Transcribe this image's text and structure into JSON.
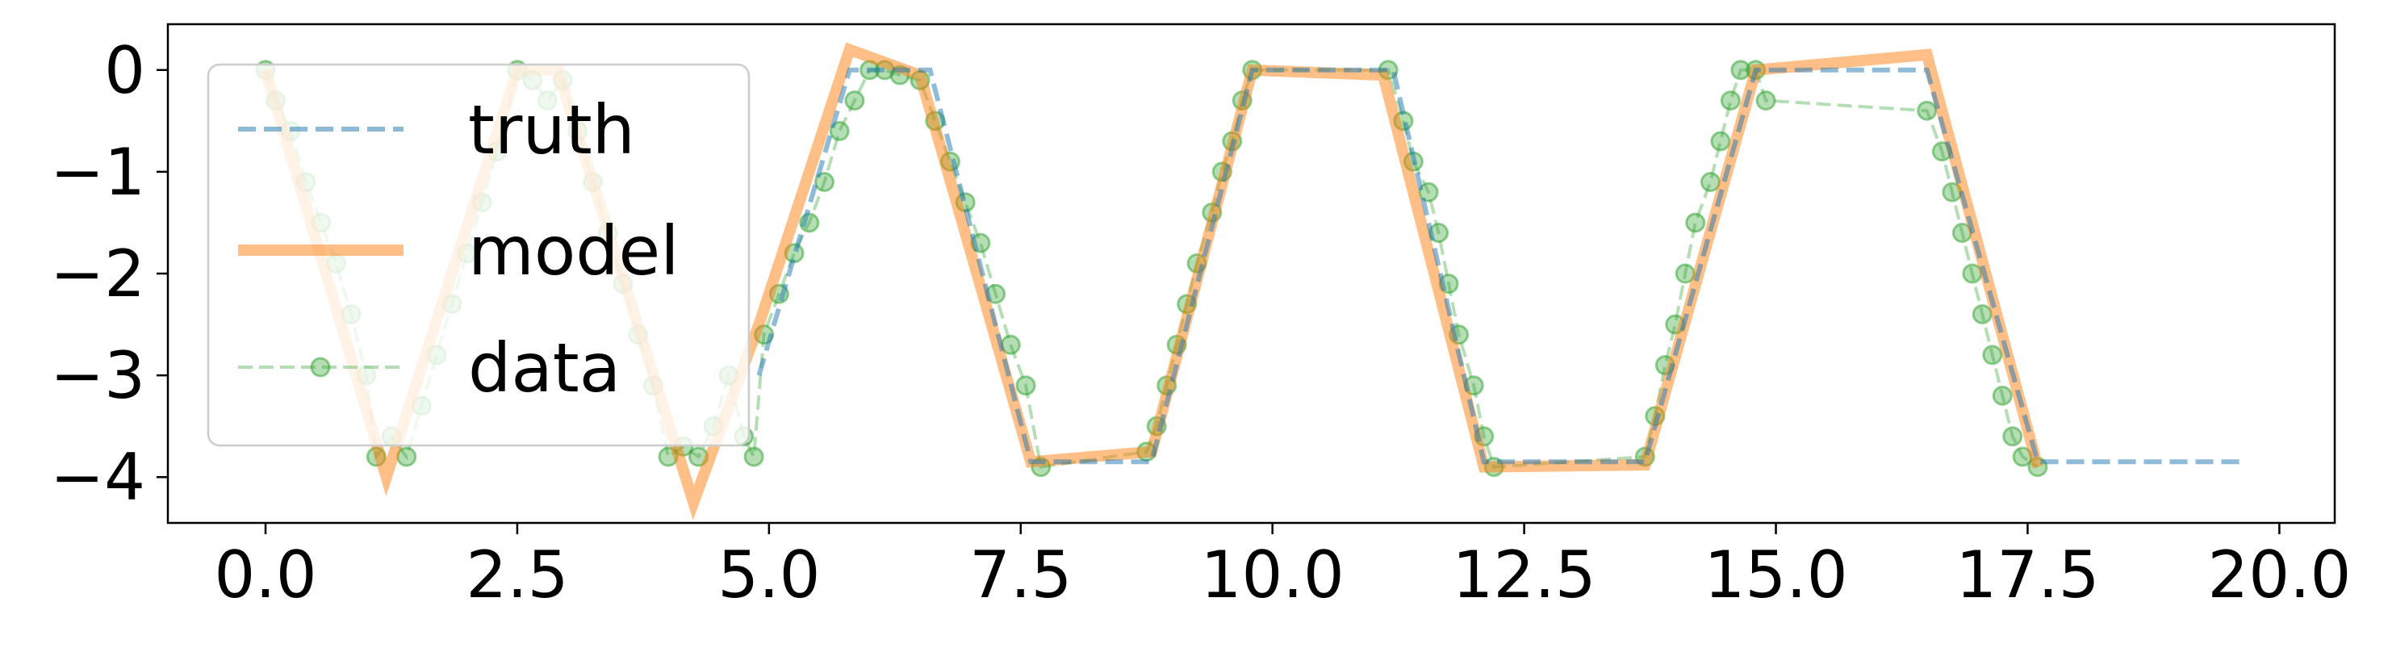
{
  "chart_data": {
    "type": "line",
    "title": "",
    "xlabel": "",
    "ylabel": "",
    "xlim": [
      -0.97,
      20.55
    ],
    "ylim": [
      -4.45,
      0.45
    ],
    "xticks": [
      0.0,
      2.5,
      5.0,
      7.5,
      10.0,
      12.5,
      15.0,
      17.5,
      20.0
    ],
    "xtick_labels": [
      "0.0",
      "2.5",
      "5.0",
      "7.5",
      "10.0",
      "12.5",
      "15.0",
      "17.5",
      "20.0"
    ],
    "yticks": [
      0,
      -1,
      -2,
      -3,
      -4
    ],
    "ytick_labels": [
      "0",
      "−1",
      "−2",
      "−3",
      "−4"
    ],
    "grid": false,
    "legend_position": "top-left",
    "series": [
      {
        "name": "truth",
        "style": "dashed",
        "color": "#1f77b4",
        "x": [
          4.9,
          5.8,
          6.6,
          7.6,
          8.8,
          9.8,
          11.2,
          12.1,
          13.7,
          14.8,
          16.5,
          17.6,
          19.6
        ],
        "y": [
          -3.0,
          0.0,
          0.0,
          -3.85,
          -3.85,
          0.0,
          0.0,
          -3.85,
          -3.85,
          0.0,
          0.0,
          -3.85,
          -3.85
        ]
      },
      {
        "name": "model",
        "style": "solid",
        "color": "#ff7f0e",
        "x": [
          0.0,
          1.2,
          2.5,
          2.9,
          4.25,
          4.9,
          5.8,
          6.5,
          7.6,
          8.8,
          9.8,
          11.1,
          12.1,
          13.7,
          14.8,
          16.5,
          17.6
        ],
        "y": [
          0.0,
          -4.0,
          0.0,
          0.0,
          -4.25,
          -2.5,
          0.2,
          -0.05,
          -3.85,
          -3.75,
          0.0,
          -0.05,
          -3.9,
          -3.88,
          0.0,
          0.15,
          -3.9
        ]
      },
      {
        "name": "data",
        "style": "dashed-markers",
        "color": "#2ca02c",
        "x": [
          0.0,
          0.1,
          0.25,
          0.4,
          0.55,
          0.7,
          0.85,
          1.0,
          1.1,
          1.25,
          1.4,
          1.55,
          1.7,
          1.85,
          2.0,
          2.15,
          2.3,
          2.5,
          2.65,
          2.8,
          2.95,
          3.1,
          3.25,
          3.4,
          3.55,
          3.7,
          3.85,
          4.0,
          4.15,
          4.3,
          4.45,
          4.6,
          4.75,
          4.85,
          4.95,
          5.1,
          5.25,
          5.4,
          5.55,
          5.7,
          5.85,
          6.0,
          6.15,
          6.3,
          6.5,
          6.65,
          6.8,
          6.95,
          7.1,
          7.25,
          7.4,
          7.55,
          7.7,
          8.75,
          8.85,
          8.95,
          9.05,
          9.15,
          9.25,
          9.4,
          9.5,
          9.6,
          9.7,
          9.8,
          11.15,
          11.3,
          11.4,
          11.55,
          11.65,
          11.75,
          11.85,
          12.0,
          12.1,
          12.2,
          13.7,
          13.8,
          13.9,
          14.0,
          14.1,
          14.2,
          14.35,
          14.45,
          14.55,
          14.65,
          14.8,
          14.9,
          16.5,
          16.65,
          16.75,
          16.85,
          16.95,
          17.05,
          17.15,
          17.25,
          17.35,
          17.45,
          17.6
        ],
        "y": [
          0.0,
          -0.3,
          -0.6,
          -1.1,
          -1.5,
          -1.9,
          -2.4,
          -3.0,
          -3.8,
          -3.6,
          -3.8,
          -3.3,
          -2.8,
          -2.3,
          -1.8,
          -1.3,
          -0.8,
          0.0,
          -0.1,
          -0.3,
          -0.1,
          -0.6,
          -1.1,
          -1.6,
          -2.1,
          -2.6,
          -3.1,
          -3.8,
          -3.7,
          -3.8,
          -3.5,
          -3.0,
          -3.6,
          -3.8,
          -2.6,
          -2.2,
          -1.8,
          -1.5,
          -1.1,
          -0.6,
          -0.3,
          0.0,
          0.0,
          -0.05,
          -0.1,
          -0.5,
          -0.9,
          -1.3,
          -1.7,
          -2.2,
          -2.7,
          -3.1,
          -3.9,
          -3.75,
          -3.5,
          -3.1,
          -2.7,
          -2.3,
          -1.9,
          -1.4,
          -1.0,
          -0.7,
          -0.3,
          0.0,
          0.0,
          -0.5,
          -0.9,
          -1.2,
          -1.6,
          -2.1,
          -2.6,
          -3.1,
          -3.6,
          -3.9,
          -3.8,
          -3.4,
          -2.9,
          -2.5,
          -2.0,
          -1.5,
          -1.1,
          -0.7,
          -0.3,
          0.0,
          0.0,
          -0.3,
          -0.4,
          -0.8,
          -1.2,
          -1.6,
          -2.0,
          -2.4,
          -2.8,
          -3.2,
          -3.6,
          -3.8,
          -3.9
        ]
      }
    ]
  }
}
